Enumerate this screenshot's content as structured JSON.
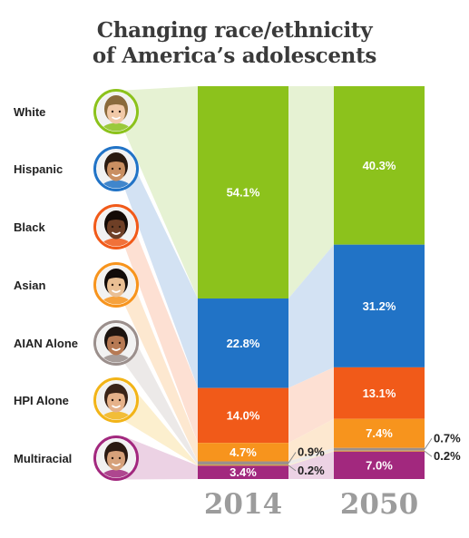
{
  "title_line1": "Changing race/ethnicity",
  "title_line2": "of America’s adolescents",
  "chart_data": {
    "type": "bar",
    "stacked": true,
    "title": "Changing race/ethnicity of America’s adolescents",
    "x": [
      "2014",
      "2050"
    ],
    "categories": [
      "White",
      "Hispanic",
      "Black",
      "Asian",
      "AIAN Alone",
      "HPI Alone",
      "Multiracial"
    ],
    "colors": {
      "White": "#8cc21c",
      "Hispanic": "#2173c6",
      "Black": "#f15a19",
      "Asian": "#f7941d",
      "AIAN Alone": "#9b8f8c",
      "HPI Alone": "#f2b418",
      "Multiracial": "#a2287e"
    },
    "band_colors": {
      "White": "#e6f2d3",
      "Hispanic": "#d3e2f3",
      "Black": "#fde0d3",
      "Asian": "#fde8d0",
      "AIAN Alone": "#ece9e8",
      "HPI Alone": "#fcefce",
      "Multiracial": "#ecd2e4"
    },
    "series": [
      {
        "name": "2014",
        "values": [
          54.1,
          22.8,
          14.0,
          4.7,
          0.9,
          0.2,
          3.4
        ],
        "labels": [
          "54.1%",
          "22.8%",
          "14.0%",
          "4.7%",
          "0.9%",
          "0.2%",
          "3.4%"
        ]
      },
      {
        "name": "2050",
        "values": [
          40.3,
          31.2,
          13.1,
          7.4,
          0.7,
          0.2,
          7.0
        ],
        "labels": [
          "40.3%",
          "31.2%",
          "13.1%",
          "7.4%",
          "0.7%",
          "0.2%",
          "7.0%"
        ]
      }
    ],
    "ylim": [
      0,
      100
    ],
    "icons": [
      "white-teen-avatar",
      "hispanic-teen-avatar",
      "black-teen-avatar",
      "asian-teen-avatar",
      "aian-teen-avatar",
      "hpi-teen-avatar",
      "multiracial-teen-avatar"
    ]
  }
}
